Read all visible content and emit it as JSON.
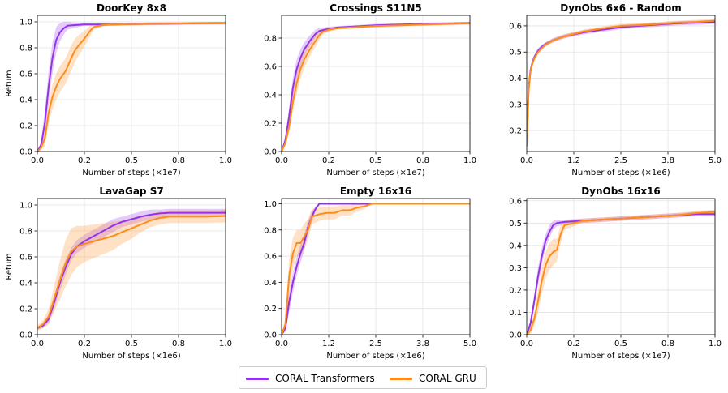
{
  "colors": {
    "transformer": "#9333ea",
    "gru": "#ff8c1a"
  },
  "legend": {
    "placement": "bottom-center",
    "items": [
      {
        "label": "CORAL Transformers",
        "color": "#9333ea"
      },
      {
        "label": "CORAL GRU",
        "color": "#ff8c1a"
      }
    ]
  },
  "chart_data": [
    {
      "type": "line",
      "title": "DoorKey 8x8",
      "xlabel": "Number of steps (×1e7)",
      "ylabel": "Return",
      "xlim": [
        0,
        1.0
      ],
      "ylim": [
        0,
        1.05
      ],
      "grid": true,
      "xticks": [
        0,
        0.25,
        0.5,
        0.75,
        1.0
      ],
      "xticklabels": [
        "0.0",
        "0.2",
        "0.5",
        "0.8",
        "1.0"
      ],
      "yticks": [
        0,
        0.2,
        0.4,
        0.6,
        0.8,
        1.0
      ],
      "yticklabels": [
        "0.0",
        "0.2",
        "0.4",
        "0.6",
        "0.8",
        "1.0"
      ],
      "series": [
        {
          "name": "CORAL Transformers",
          "color": "#9333ea",
          "x": [
            0,
            0.02,
            0.04,
            0.06,
            0.08,
            0.1,
            0.12,
            0.14,
            0.16,
            0.2,
            0.25,
            0.3,
            0.4,
            0.6,
            1.0
          ],
          "y": [
            0.0,
            0.05,
            0.22,
            0.5,
            0.72,
            0.86,
            0.92,
            0.95,
            0.97,
            0.975,
            0.98,
            0.98,
            0.98,
            0.985,
            0.99
          ],
          "band": [
            0.0,
            0.03,
            0.1,
            0.12,
            0.12,
            0.1,
            0.07,
            0.05,
            0.03,
            0.02,
            0.01,
            0.01,
            0.01,
            0.01,
            0.01
          ]
        },
        {
          "name": "CORAL GRU",
          "color": "#ff8c1a",
          "x": [
            0,
            0.02,
            0.04,
            0.06,
            0.08,
            0.1,
            0.12,
            0.15,
            0.18,
            0.2,
            0.22,
            0.25,
            0.28,
            0.3,
            0.35,
            0.4,
            0.6,
            1.0
          ],
          "y": [
            0.0,
            0.03,
            0.1,
            0.3,
            0.42,
            0.5,
            0.56,
            0.62,
            0.72,
            0.78,
            0.82,
            0.87,
            0.93,
            0.96,
            0.975,
            0.98,
            0.985,
            0.99
          ],
          "band": [
            0.0,
            0.02,
            0.06,
            0.08,
            0.1,
            0.1,
            0.1,
            0.1,
            0.1,
            0.09,
            0.08,
            0.06,
            0.04,
            0.02,
            0.01,
            0.01,
            0.01,
            0.01
          ]
        }
      ]
    },
    {
      "type": "line",
      "title": "Crossings S11N5",
      "xlabel": "Number of steps (×1e7)",
      "ylabel": "",
      "xlim": [
        0,
        1.0
      ],
      "ylim": [
        0,
        0.96
      ],
      "grid": true,
      "xticks": [
        0,
        0.25,
        0.5,
        0.75,
        1.0
      ],
      "xticklabels": [
        "0.0",
        "0.2",
        "0.5",
        "0.8",
        "1.0"
      ],
      "yticks": [
        0,
        0.2,
        0.4,
        0.6,
        0.8
      ],
      "yticklabels": [
        "0.0",
        "0.2",
        "0.4",
        "0.6",
        "0.8"
      ],
      "series": [
        {
          "name": "CORAL Transformers",
          "color": "#9333ea",
          "x": [
            0,
            0.02,
            0.04,
            0.06,
            0.08,
            0.1,
            0.12,
            0.15,
            0.18,
            0.2,
            0.25,
            0.3,
            0.5,
            0.75,
            1.0
          ],
          "y": [
            0.0,
            0.08,
            0.25,
            0.45,
            0.58,
            0.66,
            0.72,
            0.78,
            0.83,
            0.85,
            0.865,
            0.875,
            0.89,
            0.9,
            0.905
          ],
          "band": [
            0.0,
            0.03,
            0.06,
            0.07,
            0.07,
            0.06,
            0.05,
            0.04,
            0.03,
            0.02,
            0.015,
            0.01,
            0.01,
            0.01,
            0.01
          ]
        },
        {
          "name": "CORAL GRU",
          "color": "#ff8c1a",
          "x": [
            0,
            0.02,
            0.04,
            0.06,
            0.08,
            0.1,
            0.12,
            0.15,
            0.18,
            0.2,
            0.22,
            0.25,
            0.3,
            0.5,
            0.75,
            1.0
          ],
          "y": [
            0.0,
            0.06,
            0.18,
            0.35,
            0.48,
            0.58,
            0.65,
            0.72,
            0.78,
            0.82,
            0.845,
            0.86,
            0.87,
            0.885,
            0.895,
            0.905
          ],
          "band": [
            0.0,
            0.02,
            0.05,
            0.06,
            0.07,
            0.07,
            0.06,
            0.05,
            0.04,
            0.03,
            0.02,
            0.015,
            0.01,
            0.01,
            0.01,
            0.01
          ]
        }
      ]
    },
    {
      "type": "line",
      "title": "DynObs 6x6 - Random",
      "xlabel": "Number of steps (×1e6)",
      "ylabel": "",
      "xlim": [
        0,
        5.0
      ],
      "ylim": [
        0.12,
        0.64
      ],
      "grid": true,
      "xticks": [
        0,
        1.25,
        2.5,
        3.75,
        5.0
      ],
      "xticklabels": [
        "0.0",
        "1.2",
        "2.5",
        "3.8",
        "5.0"
      ],
      "yticks": [
        0.2,
        0.3,
        0.4,
        0.5,
        0.6
      ],
      "yticklabels": [
        "0.2",
        "0.3",
        "0.4",
        "0.5",
        "0.6"
      ],
      "series": [
        {
          "name": "CORAL Transformers",
          "color": "#9333ea",
          "x": [
            0,
            0.05,
            0.1,
            0.15,
            0.2,
            0.3,
            0.4,
            0.5,
            0.7,
            1.0,
            1.5,
            2.0,
            2.5,
            3.0,
            3.5,
            4.0,
            4.5,
            5.0
          ],
          "y": [
            0.14,
            0.36,
            0.43,
            0.46,
            0.48,
            0.505,
            0.52,
            0.53,
            0.545,
            0.56,
            0.575,
            0.585,
            0.595,
            0.6,
            0.605,
            0.61,
            0.612,
            0.615
          ],
          "band": [
            0.0,
            0.02,
            0.015,
            0.012,
            0.01,
            0.01,
            0.008,
            0.008,
            0.008,
            0.008,
            0.008,
            0.008,
            0.008,
            0.008,
            0.008,
            0.008,
            0.008,
            0.008
          ]
        },
        {
          "name": "CORAL GRU",
          "color": "#ff8c1a",
          "x": [
            0,
            0.05,
            0.1,
            0.15,
            0.2,
            0.3,
            0.4,
            0.5,
            0.7,
            1.0,
            1.5,
            2.0,
            2.5,
            3.0,
            3.5,
            4.0,
            4.5,
            5.0
          ],
          "y": [
            0.14,
            0.35,
            0.425,
            0.455,
            0.475,
            0.5,
            0.515,
            0.528,
            0.545,
            0.56,
            0.578,
            0.59,
            0.6,
            0.603,
            0.607,
            0.612,
            0.615,
            0.62
          ],
          "band": [
            0.0,
            0.02,
            0.015,
            0.012,
            0.01,
            0.01,
            0.008,
            0.008,
            0.008,
            0.008,
            0.008,
            0.008,
            0.008,
            0.008,
            0.008,
            0.008,
            0.008,
            0.008
          ]
        }
      ]
    },
    {
      "type": "line",
      "title": "LavaGap S7",
      "xlabel": "Number of steps (×1e6)",
      "ylabel": "Return",
      "xlim": [
        0,
        1.0
      ],
      "ylim": [
        0,
        1.05
      ],
      "grid": true,
      "xticks": [
        0,
        0.25,
        0.5,
        0.75,
        1.0
      ],
      "xticklabels": [
        "0.0",
        "0.2",
        "0.5",
        "0.8",
        "1.0"
      ],
      "yticks": [
        0,
        0.2,
        0.4,
        0.6,
        0.8,
        1.0
      ],
      "yticklabels": [
        "0.0",
        "0.2",
        "0.4",
        "0.6",
        "0.8",
        "1.0"
      ],
      "series": [
        {
          "name": "CORAL Transformers",
          "color": "#9333ea",
          "x": [
            0,
            0.03,
            0.06,
            0.09,
            0.12,
            0.15,
            0.18,
            0.21,
            0.25,
            0.3,
            0.35,
            0.4,
            0.45,
            0.5,
            0.55,
            0.6,
            0.65,
            0.7,
            0.8,
            0.9,
            1.0
          ],
          "y": [
            0.05,
            0.07,
            0.12,
            0.25,
            0.4,
            0.52,
            0.62,
            0.68,
            0.72,
            0.76,
            0.8,
            0.84,
            0.87,
            0.89,
            0.91,
            0.925,
            0.935,
            0.94,
            0.94,
            0.94,
            0.94
          ],
          "band": [
            0.01,
            0.02,
            0.03,
            0.05,
            0.06,
            0.06,
            0.05,
            0.05,
            0.05,
            0.05,
            0.05,
            0.05,
            0.04,
            0.04,
            0.04,
            0.04,
            0.03,
            0.03,
            0.03,
            0.03,
            0.03
          ]
        },
        {
          "name": "CORAL GRU",
          "color": "#ff8c1a",
          "x": [
            0,
            0.03,
            0.06,
            0.09,
            0.12,
            0.15,
            0.18,
            0.21,
            0.25,
            0.3,
            0.35,
            0.4,
            0.45,
            0.5,
            0.55,
            0.6,
            0.65,
            0.7,
            0.8,
            0.9,
            1.0
          ],
          "y": [
            0.05,
            0.08,
            0.14,
            0.28,
            0.42,
            0.55,
            0.64,
            0.68,
            0.7,
            0.72,
            0.74,
            0.76,
            0.79,
            0.82,
            0.85,
            0.88,
            0.9,
            0.91,
            0.91,
            0.91,
            0.915
          ],
          "band": [
            0.02,
            0.03,
            0.06,
            0.1,
            0.15,
            0.18,
            0.18,
            0.16,
            0.14,
            0.13,
            0.12,
            0.11,
            0.09,
            0.08,
            0.06,
            0.05,
            0.05,
            0.05,
            0.05,
            0.05,
            0.05
          ]
        }
      ]
    },
    {
      "type": "line",
      "title": "Empty 16x16",
      "xlabel": "Number of steps (×1e6)",
      "ylabel": "",
      "xlim": [
        0,
        5.0
      ],
      "ylim": [
        0,
        1.04
      ],
      "grid": true,
      "xticks": [
        0,
        1.25,
        2.5,
        3.75,
        5.0
      ],
      "xticklabels": [
        "0.0",
        "1.2",
        "2.5",
        "3.8",
        "5.0"
      ],
      "yticks": [
        0,
        0.2,
        0.4,
        0.6,
        0.8,
        1.0
      ],
      "yticklabels": [
        "0.0",
        "0.2",
        "0.4",
        "0.6",
        "0.8",
        "1.0"
      ],
      "series": [
        {
          "name": "CORAL Transformers",
          "color": "#9333ea",
          "x": [
            0,
            0.1,
            0.2,
            0.3,
            0.4,
            0.5,
            0.6,
            0.7,
            0.8,
            0.9,
            1.0,
            1.1,
            1.2,
            1.5,
            2.0,
            2.5,
            3.0,
            3.5,
            4.0,
            4.5,
            5.0
          ],
          "y": [
            0.0,
            0.05,
            0.25,
            0.4,
            0.52,
            0.62,
            0.7,
            0.82,
            0.9,
            0.96,
            1.0,
            1.0,
            1.0,
            1.0,
            1.0,
            1.0,
            1.0,
            1.0,
            1.0,
            1.0,
            1.0
          ],
          "band": [
            0.0,
            0.03,
            0.08,
            0.08,
            0.07,
            0.07,
            0.06,
            0.05,
            0.04,
            0.02,
            0.0,
            0.0,
            0.0,
            0.0,
            0.0,
            0.0,
            0.0,
            0.0,
            0.0,
            0.0,
            0.0
          ]
        },
        {
          "name": "CORAL GRU",
          "color": "#ff8c1a",
          "x": [
            0,
            0.1,
            0.2,
            0.3,
            0.4,
            0.5,
            0.6,
            0.7,
            0.8,
            1.0,
            1.2,
            1.4,
            1.6,
            1.8,
            2.0,
            2.2,
            2.4,
            3.0,
            4.0,
            5.0
          ],
          "y": [
            0.0,
            0.08,
            0.45,
            0.62,
            0.7,
            0.7,
            0.75,
            0.8,
            0.9,
            0.92,
            0.93,
            0.93,
            0.95,
            0.95,
            0.97,
            0.98,
            1.0,
            1.0,
            1.0,
            1.0
          ],
          "band": [
            0.0,
            0.05,
            0.12,
            0.12,
            0.1,
            0.1,
            0.1,
            0.08,
            0.06,
            0.05,
            0.05,
            0.05,
            0.04,
            0.04,
            0.03,
            0.02,
            0.0,
            0.0,
            0.0,
            0.0
          ]
        }
      ]
    },
    {
      "type": "line",
      "title": "DynObs 16x16",
      "xlabel": "Number of steps (×1e7)",
      "ylabel": "",
      "xlim": [
        0,
        1.0
      ],
      "ylim": [
        0,
        0.61
      ],
      "grid": true,
      "xticks": [
        0,
        0.25,
        0.5,
        0.75,
        1.0
      ],
      "xticklabels": [
        "0.0",
        "0.2",
        "0.5",
        "0.8",
        "1.0"
      ],
      "yticks": [
        0,
        0.1,
        0.2,
        0.3,
        0.4,
        0.5,
        0.6
      ],
      "yticklabels": [
        "0.0",
        "0.1",
        "0.2",
        "0.3",
        "0.4",
        "0.5",
        "0.6"
      ],
      "series": [
        {
          "name": "CORAL Transformers",
          "color": "#9333ea",
          "x": [
            0,
            0.02,
            0.04,
            0.06,
            0.08,
            0.1,
            0.12,
            0.14,
            0.16,
            0.2,
            0.3,
            0.4,
            0.5,
            0.6,
            0.7,
            0.8,
            0.9,
            1.0
          ],
          "y": [
            0.0,
            0.05,
            0.15,
            0.26,
            0.35,
            0.42,
            0.46,
            0.49,
            0.5,
            0.505,
            0.51,
            0.515,
            0.52,
            0.525,
            0.53,
            0.535,
            0.54,
            0.54
          ],
          "band": [
            0.0,
            0.02,
            0.03,
            0.04,
            0.04,
            0.03,
            0.03,
            0.02,
            0.015,
            0.01,
            0.01,
            0.01,
            0.01,
            0.01,
            0.01,
            0.01,
            0.01,
            0.01
          ]
        },
        {
          "name": "CORAL GRU",
          "color": "#ff8c1a",
          "x": [
            0,
            0.02,
            0.04,
            0.06,
            0.08,
            0.1,
            0.12,
            0.14,
            0.16,
            0.18,
            0.2,
            0.25,
            0.3,
            0.4,
            0.5,
            0.6,
            0.7,
            0.8,
            0.9,
            1.0
          ],
          "y": [
            0.0,
            0.02,
            0.07,
            0.15,
            0.24,
            0.31,
            0.35,
            0.37,
            0.38,
            0.45,
            0.49,
            0.5,
            0.51,
            0.515,
            0.52,
            0.525,
            0.53,
            0.535,
            0.545,
            0.55
          ],
          "band": [
            0.0,
            0.02,
            0.03,
            0.05,
            0.06,
            0.06,
            0.06,
            0.06,
            0.05,
            0.04,
            0.02,
            0.015,
            0.01,
            0.01,
            0.01,
            0.01,
            0.01,
            0.01,
            0.01,
            0.01
          ]
        }
      ]
    }
  ]
}
